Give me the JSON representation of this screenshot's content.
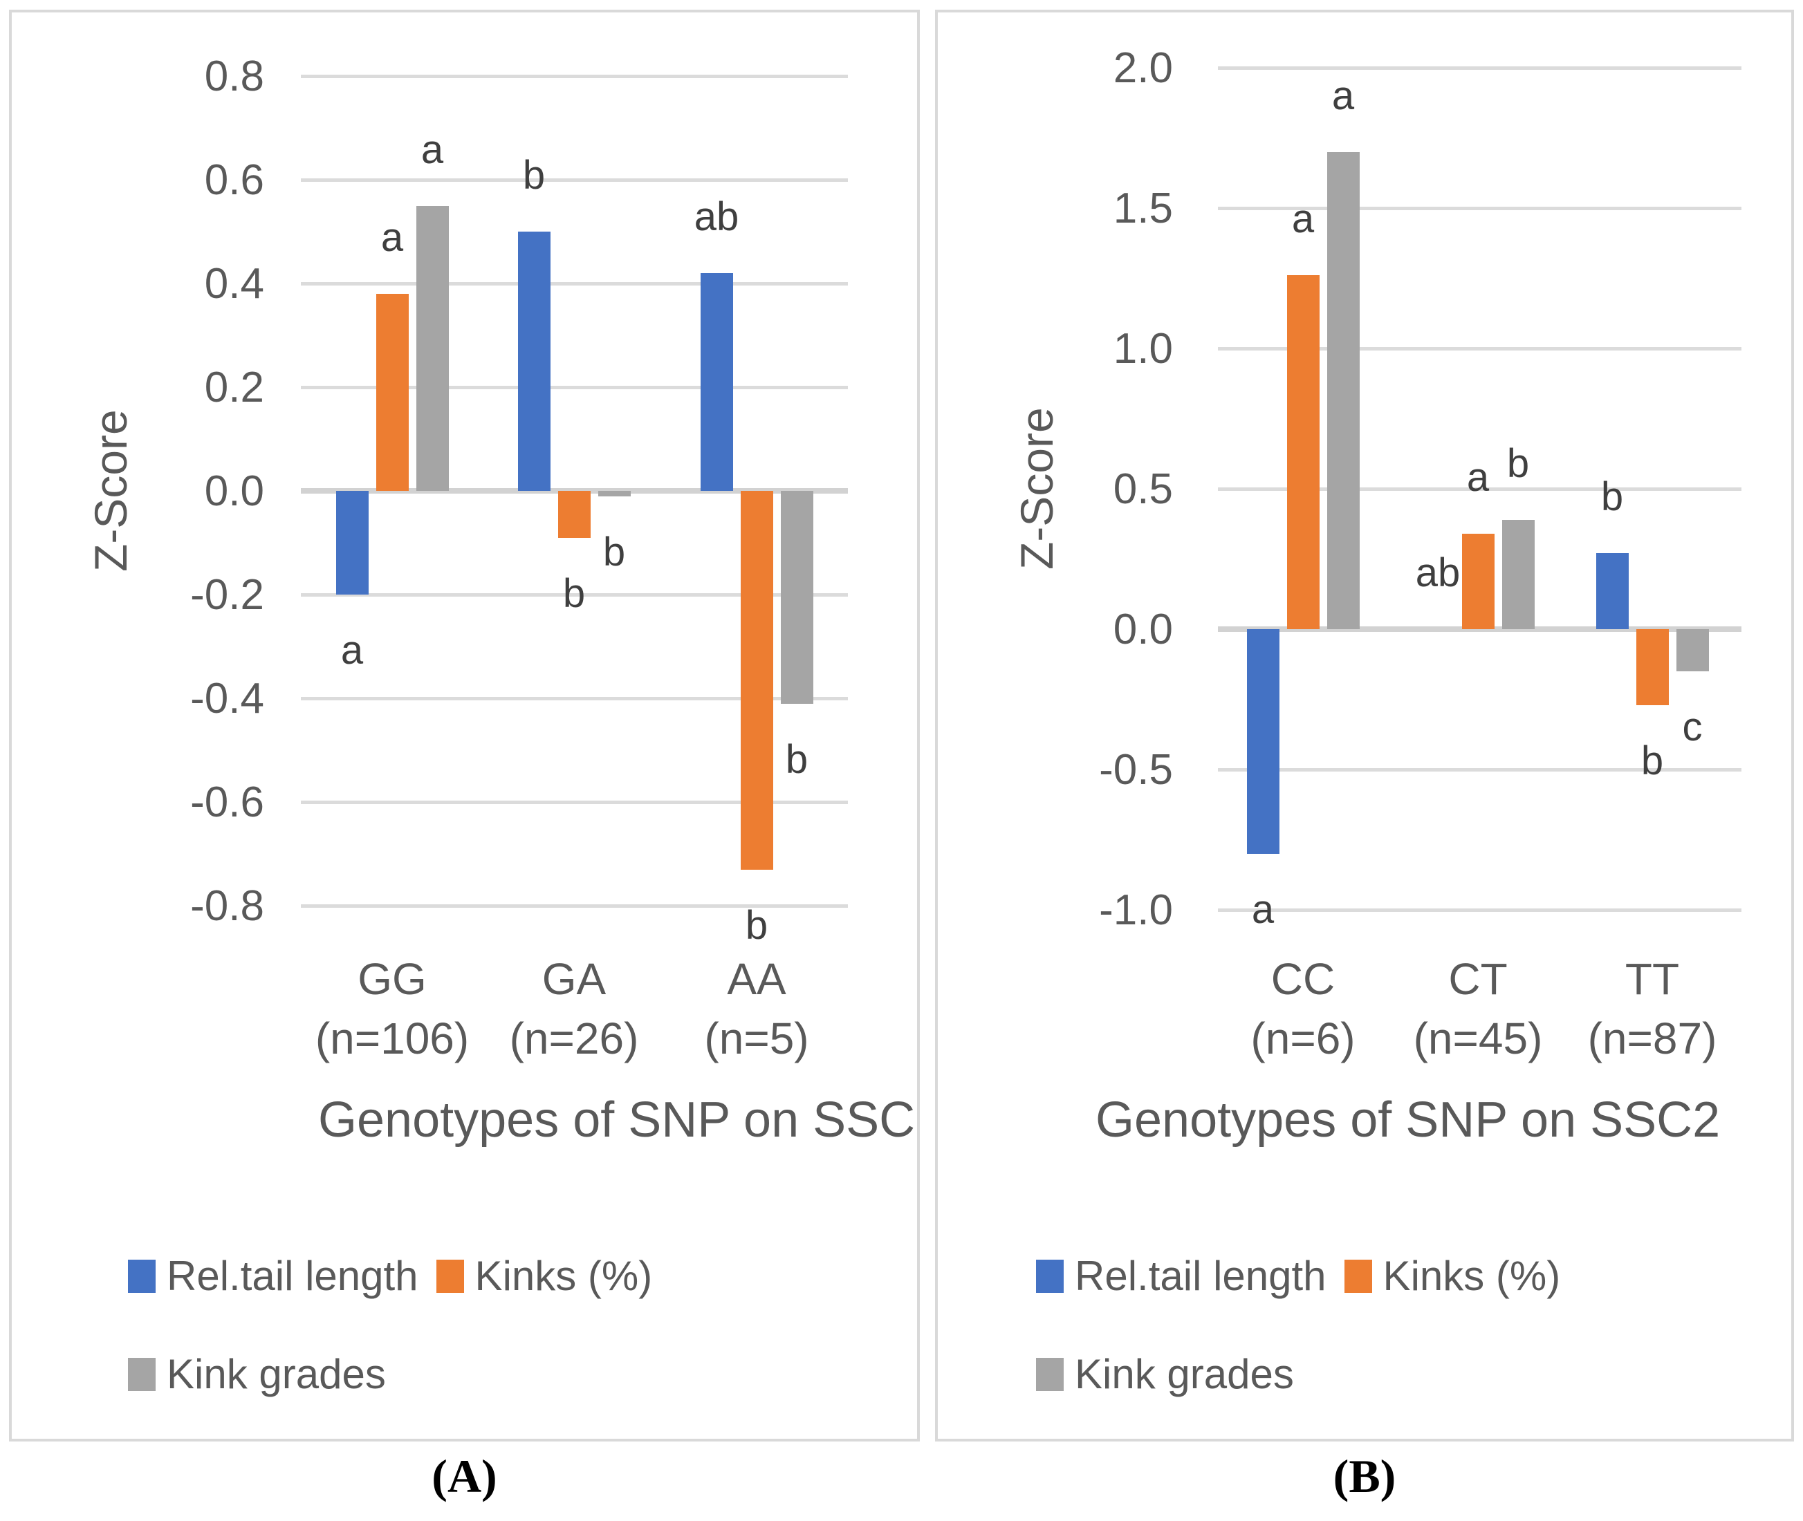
{
  "colors": {
    "blue": "#4472C4",
    "orange": "#ED7D31",
    "gray": "#A5A5A5",
    "gridline": "#DBDBDB",
    "baseline": "#D2D2D2",
    "axis_text": "#595959",
    "letter_text": "#3F3F3F",
    "panel_border": "#D9D9D9",
    "caption_text": "#000000"
  },
  "legend": {
    "items": [
      {
        "label": "Rel.tail length",
        "color_key": "blue"
      },
      {
        "label": "Kinks (%)",
        "color_key": "orange"
      },
      {
        "label": "Kink grades",
        "color_key": "gray"
      }
    ]
  },
  "captions": {
    "a": "(A)",
    "b": "(B)"
  },
  "chart_data": [
    {
      "type": "bar",
      "panel": "A",
      "title": "Genotypes of SNP on SSC",
      "ylabel": "Z-Score",
      "ylim": [
        -0.8,
        0.8
      ],
      "ytick_step": 0.2,
      "grid": true,
      "legend_position": "bottom-left",
      "yticks": [
        {
          "value": 0.8,
          "label": "0.8"
        },
        {
          "value": 0.6,
          "label": "0.6"
        },
        {
          "value": 0.4,
          "label": "0.4"
        },
        {
          "value": 0.2,
          "label": "0.2"
        },
        {
          "value": 0.0,
          "label": "0.0"
        },
        {
          "value": -0.2,
          "label": "-0.2"
        },
        {
          "value": -0.4,
          "label": "-0.4"
        },
        {
          "value": -0.6,
          "label": "-0.6"
        },
        {
          "value": -0.8,
          "label": "-0.8"
        }
      ],
      "categories": [
        {
          "line1": "GG",
          "line2": "(n=106)"
        },
        {
          "line1": "GA",
          "line2": "(n=26)"
        },
        {
          "line1": "AA",
          "line2": "(n=5)"
        }
      ],
      "series": [
        {
          "name": "Rel.tail length",
          "color_key": "blue",
          "values": [
            -0.2,
            0.5,
            0.42
          ],
          "letters": [
            {
              "text": "a",
              "side": "below"
            },
            {
              "text": "b",
              "side": "above"
            },
            {
              "text": "ab",
              "side": "above"
            }
          ]
        },
        {
          "name": "Kinks (%)",
          "color_key": "orange",
          "values": [
            0.38,
            -0.09,
            -0.73
          ],
          "letters": [
            {
              "text": "a",
              "side": "above"
            },
            {
              "text": "b",
              "side": "below"
            },
            {
              "text": "b",
              "side": "below"
            }
          ]
        },
        {
          "name": "Kink grades",
          "color_key": "gray",
          "values": [
            0.55,
            -0.01,
            -0.41
          ],
          "letters": [
            {
              "text": "a",
              "side": "above"
            },
            {
              "text": "b",
              "side": "below"
            },
            {
              "text": "b",
              "side": "below"
            }
          ]
        }
      ]
    },
    {
      "type": "bar",
      "panel": "B",
      "title": "Genotypes of SNP on SSC2",
      "ylabel": "Z-Score",
      "ylim": [
        -1.0,
        2.0
      ],
      "ytick_step": 0.5,
      "grid": true,
      "legend_position": "bottom-left",
      "yticks": [
        {
          "value": 2.0,
          "label": "2.0"
        },
        {
          "value": 1.5,
          "label": "1.5"
        },
        {
          "value": 1.0,
          "label": "1.0"
        },
        {
          "value": 0.5,
          "label": "0.5"
        },
        {
          "value": 0.0,
          "label": "0.0"
        },
        {
          "value": -0.5,
          "label": "-0.5"
        },
        {
          "value": -1.0,
          "label": "-1.0"
        }
      ],
      "categories": [
        {
          "line1": "CC",
          "line2": "(n=6)"
        },
        {
          "line1": "CT",
          "line2": "(n=45)"
        },
        {
          "line1": "TT",
          "line2": "(n=87)"
        }
      ],
      "series": [
        {
          "name": "Rel.tail length",
          "color_key": "blue",
          "values": [
            -0.8,
            0.0,
            0.27
          ],
          "letters": [
            {
              "text": "a",
              "side": "below"
            },
            {
              "text": "ab",
              "side": "above"
            },
            {
              "text": "b",
              "side": "above"
            }
          ]
        },
        {
          "name": "Kinks (%)",
          "color_key": "orange",
          "values": [
            1.26,
            0.34,
            -0.27
          ],
          "letters": [
            {
              "text": "a",
              "side": "above"
            },
            {
              "text": "a",
              "side": "above"
            },
            {
              "text": "b",
              "side": "below"
            }
          ]
        },
        {
          "name": "Kink grades",
          "color_key": "gray",
          "values": [
            1.7,
            0.39,
            -0.15
          ],
          "letters": [
            {
              "text": "a",
              "side": "above"
            },
            {
              "text": "b",
              "side": "above"
            },
            {
              "text": "c",
              "side": "below"
            }
          ]
        }
      ]
    }
  ]
}
